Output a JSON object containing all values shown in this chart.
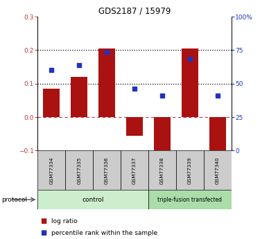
{
  "title": "GDS2187 / 15979",
  "samples": [
    "GSM77334",
    "GSM77335",
    "GSM77336",
    "GSM77337",
    "GSM77338",
    "GSM77339",
    "GSM77340"
  ],
  "log_ratio": [
    0.085,
    0.12,
    0.205,
    -0.055,
    -0.105,
    0.205,
    -0.105
  ],
  "percentile_rank": [
    0.14,
    0.155,
    0.195,
    0.085,
    0.065,
    0.175,
    0.065
  ],
  "ylim_left": [
    -0.1,
    0.3
  ],
  "ylim_right": [
    0,
    100
  ],
  "yticks_left": [
    -0.1,
    0.0,
    0.1,
    0.2,
    0.3
  ],
  "yticks_right": [
    0,
    25,
    50,
    75,
    100
  ],
  "yticklabels_right": [
    "0",
    "25",
    "50",
    "75",
    "100%"
  ],
  "hlines_dotted": [
    0.1,
    0.2
  ],
  "bar_color": "#aa1111",
  "dot_color": "#2233bb",
  "control_label": "control",
  "treated_label": "triple-fusion transfected",
  "protocol_label": "protocol",
  "legend_bar_label": "log ratio",
  "legend_dot_label": "percentile rank within the sample",
  "control_color": "#cceecc",
  "treated_color": "#aaddaa",
  "sample_box_color": "#cccccc",
  "zero_line_color": "#cc3333",
  "left_tick_color": "#cc3333",
  "right_tick_color": "#2233bb",
  "n_control": 4,
  "n_treated": 3
}
